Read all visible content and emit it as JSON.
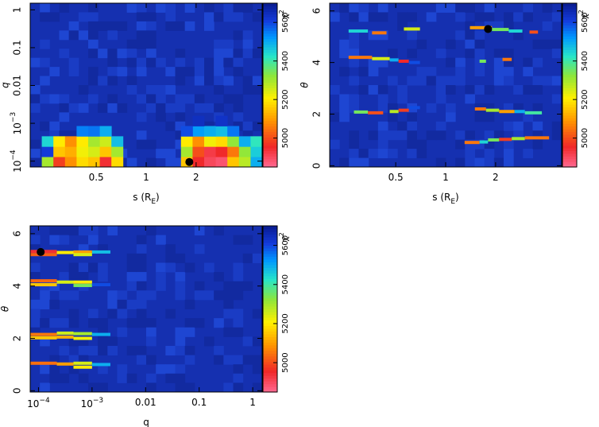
{
  "chart_data": [
    {
      "type": "heatmap",
      "panel": "s-q",
      "xlabel": "s (R",
      "xlabel_sub": "E",
      "xlabel_close": ")",
      "ylabel": "q",
      "x_scale": "log",
      "y_scale": "log",
      "xlim": [
        0.2,
        5.0
      ],
      "ylim": [
        7e-05,
        1.5
      ],
      "x_ticks": [
        {
          "v": 0.5,
          "label": "0.5"
        },
        {
          "v": 1,
          "label": "1"
        },
        {
          "v": 2,
          "label": "2"
        }
      ],
      "y_ticks": [
        {
          "v": 0.0001,
          "base": "10",
          "exp": "−4"
        },
        {
          "v": 0.001,
          "base": "10",
          "exp": "−3"
        },
        {
          "v": 0.01,
          "label": "0.01"
        },
        {
          "v": 0.1,
          "label": "0.1"
        },
        {
          "v": 1,
          "label": "1"
        }
      ],
      "colorbar_label": "χ",
      "colorbar_exp": "2",
      "colorbar_ticks": [
        5000,
        5200,
        5400,
        5600
      ],
      "zlim": [
        4850,
        5700
      ],
      "best_fit": {
        "x": 1.82,
        "y": 9.5e-05
      },
      "grid": {
        "x_bins": 20,
        "y_bins": 16
      },
      "hot_cells": [
        {
          "xi": 1,
          "yi": 1,
          "z": 5300
        },
        {
          "xi": 2,
          "yi": 1,
          "z": 4980
        },
        {
          "xi": 3,
          "yi": 1,
          "z": 5080
        },
        {
          "xi": 4,
          "yi": 1,
          "z": 5180
        },
        {
          "xi": 5,
          "yi": 1,
          "z": 5150
        },
        {
          "xi": 6,
          "yi": 1,
          "z": 4940
        },
        {
          "xi": 7,
          "yi": 1,
          "z": 5180
        },
        {
          "xi": 1,
          "yi": 2,
          "z": 5620
        },
        {
          "xi": 2,
          "yi": 2,
          "z": 5150
        },
        {
          "xi": 3,
          "yi": 2,
          "z": 5120
        },
        {
          "xi": 4,
          "yi": 2,
          "z": 5220
        },
        {
          "xi": 5,
          "yi": 2,
          "z": 5250
        },
        {
          "xi": 6,
          "yi": 2,
          "z": 5150
        },
        {
          "xi": 7,
          "yi": 2,
          "z": 5300
        },
        {
          "xi": 1,
          "yi": 3,
          "z": 5450
        },
        {
          "xi": 2,
          "yi": 3,
          "z": 5200
        },
        {
          "xi": 3,
          "yi": 3,
          "z": 5080
        },
        {
          "xi": 4,
          "yi": 3,
          "z": 5200
        },
        {
          "xi": 5,
          "yi": 3,
          "z": 5300
        },
        {
          "xi": 6,
          "yi": 3,
          "z": 5260
        },
        {
          "xi": 7,
          "yi": 3,
          "z": 5480
        },
        {
          "xi": 4,
          "yi": 4,
          "z": 5550
        },
        {
          "xi": 5,
          "yi": 4,
          "z": 5560
        },
        {
          "xi": 6,
          "yi": 4,
          "z": 5500
        },
        {
          "xi": 13,
          "yi": 1,
          "z": 5150
        },
        {
          "xi": 14,
          "yi": 1,
          "z": 4950
        },
        {
          "xi": 15,
          "yi": 1,
          "z": 4900
        },
        {
          "xi": 16,
          "yi": 1,
          "z": 4880
        },
        {
          "xi": 17,
          "yi": 1,
          "z": 5150
        },
        {
          "xi": 18,
          "yi": 1,
          "z": 5280
        },
        {
          "xi": 19,
          "yi": 1,
          "z": 5500
        },
        {
          "xi": 13,
          "yi": 2,
          "z": 5300
        },
        {
          "xi": 14,
          "yi": 2,
          "z": 5000
        },
        {
          "xi": 15,
          "yi": 2,
          "z": 4920
        },
        {
          "xi": 16,
          "yi": 2,
          "z": 4950
        },
        {
          "xi": 17,
          "yi": 2,
          "z": 5050
        },
        {
          "xi": 18,
          "yi": 2,
          "z": 5320
        },
        {
          "xi": 19,
          "yi": 2,
          "z": 5460
        },
        {
          "xi": 13,
          "yi": 3,
          "z": 5200
        },
        {
          "xi": 14,
          "yi": 3,
          "z": 5080
        },
        {
          "xi": 15,
          "yi": 3,
          "z": 5220
        },
        {
          "xi": 16,
          "yi": 3,
          "z": 5180
        },
        {
          "xi": 17,
          "yi": 3,
          "z": 5320
        },
        {
          "xi": 18,
          "yi": 3,
          "z": 5500
        },
        {
          "xi": 19,
          "yi": 3,
          "z": 5420
        },
        {
          "xi": 14,
          "yi": 4,
          "z": 5520
        },
        {
          "xi": 15,
          "yi": 4,
          "z": 5500
        },
        {
          "xi": 16,
          "yi": 4,
          "z": 5480
        },
        {
          "xi": 17,
          "yi": 4,
          "z": 5560
        },
        {
          "xi": 13,
          "yi": 4,
          "z": 5600
        },
        {
          "xi": 16,
          "yi": 5,
          "z": 5640
        },
        {
          "xi": 14,
          "yi": 5,
          "z": 5650
        }
      ]
    },
    {
      "type": "heatmap",
      "panel": "s-theta",
      "xlabel": "s (R",
      "xlabel_sub": "E",
      "xlabel_close": ")",
      "ylabel": "θ",
      "x_scale": "log",
      "y_scale": "linear",
      "xlim": [
        0.2,
        5.0
      ],
      "ylim": [
        -0.05,
        6.3
      ],
      "x_ticks": [
        {
          "v": 0.5,
          "label": "0.5"
        },
        {
          "v": 1,
          "label": "1"
        },
        {
          "v": 2,
          "label": "2"
        }
      ],
      "y_ticks": [
        {
          "v": 0,
          "label": "0"
        },
        {
          "v": 2,
          "label": "2"
        },
        {
          "v": 4,
          "label": "4"
        },
        {
          "v": 6,
          "label": "6"
        }
      ],
      "colorbar_label": "χ",
      "colorbar_exp": "2",
      "colorbar_ticks": [
        5000,
        5200,
        5400,
        5600
      ],
      "zlim": [
        4850,
        5700
      ],
      "best_fit": {
        "x": 1.8,
        "y": 5.3
      },
      "streaks": [
        {
          "x0": 0.26,
          "x1": 0.34,
          "y": 5.22,
          "z": 5450
        },
        {
          "x0": 0.36,
          "x1": 0.44,
          "y": 5.15,
          "z": 5050
        },
        {
          "x0": 0.56,
          "x1": 0.7,
          "y": 5.3,
          "z": 5250
        },
        {
          "x0": 1.4,
          "x1": 1.9,
          "y": 5.35,
          "z": 5100
        },
        {
          "x0": 1.9,
          "x1": 2.4,
          "y": 5.28,
          "z": 5350
        },
        {
          "x0": 2.4,
          "x1": 2.9,
          "y": 5.22,
          "z": 5450
        },
        {
          "x0": 3.2,
          "x1": 3.6,
          "y": 5.18,
          "z": 5000
        },
        {
          "x0": 0.26,
          "x1": 0.36,
          "y": 4.2,
          "z": 5050
        },
        {
          "x0": 0.36,
          "x1": 0.46,
          "y": 4.15,
          "z": 5250
        },
        {
          "x0": 0.46,
          "x1": 0.52,
          "y": 4.1,
          "z": 5500
        },
        {
          "x0": 0.52,
          "x1": 0.6,
          "y": 4.05,
          "z": 4950
        },
        {
          "x0": 0.6,
          "x1": 0.7,
          "y": 4.0,
          "z": 5600
        },
        {
          "x0": 1.6,
          "x1": 1.75,
          "y": 4.05,
          "z": 5350
        },
        {
          "x0": 2.2,
          "x1": 2.5,
          "y": 4.12,
          "z": 5050
        },
        {
          "x0": 0.28,
          "x1": 0.34,
          "y": 2.08,
          "z": 5350
        },
        {
          "x0": 0.34,
          "x1": 0.42,
          "y": 2.05,
          "z": 5000
        },
        {
          "x0": 0.46,
          "x1": 0.52,
          "y": 2.1,
          "z": 5280
        },
        {
          "x0": 0.52,
          "x1": 0.6,
          "y": 2.15,
          "z": 4980
        },
        {
          "x0": 0.6,
          "x1": 0.7,
          "y": 2.25,
          "z": 5600
        },
        {
          "x0": 1.5,
          "x1": 1.75,
          "y": 2.2,
          "z": 5050
        },
        {
          "x0": 1.75,
          "x1": 2.1,
          "y": 2.15,
          "z": 5300
        },
        {
          "x0": 2.1,
          "x1": 2.6,
          "y": 2.1,
          "z": 5100
        },
        {
          "x0": 2.6,
          "x1": 3.0,
          "y": 2.1,
          "z": 5500
        },
        {
          "x0": 3.0,
          "x1": 3.8,
          "y": 2.05,
          "z": 5400
        },
        {
          "x0": 1.3,
          "x1": 1.6,
          "y": 0.9,
          "z": 5050
        },
        {
          "x0": 1.6,
          "x1": 1.8,
          "y": 0.92,
          "z": 5450
        },
        {
          "x0": 1.8,
          "x1": 2.1,
          "y": 1.0,
          "z": 5350
        },
        {
          "x0": 2.1,
          "x1": 2.5,
          "y": 1.02,
          "z": 4980
        },
        {
          "x0": 2.5,
          "x1": 3.0,
          "y": 1.05,
          "z": 5300
        },
        {
          "x0": 3.0,
          "x1": 4.2,
          "y": 1.08,
          "z": 5050
        }
      ]
    },
    {
      "type": "heatmap",
      "panel": "q-theta",
      "xlabel": "q",
      "ylabel": "θ",
      "x_scale": "log",
      "y_scale": "linear",
      "xlim": [
        7e-05,
        1.5
      ],
      "ylim": [
        -0.05,
        6.3
      ],
      "x_ticks": [
        {
          "v": 0.0001,
          "base": "10",
          "exp": "−4"
        },
        {
          "v": 0.001,
          "base": "10",
          "exp": "−3"
        },
        {
          "v": 0.01,
          "label": "0.01"
        },
        {
          "v": 0.1,
          "label": "0.1"
        },
        {
          "v": 1,
          "label": "1"
        }
      ],
      "y_ticks": [
        {
          "v": 0,
          "label": "0"
        },
        {
          "v": 2,
          "label": "2"
        },
        {
          "v": 4,
          "label": "4"
        },
        {
          "v": 6,
          "label": "6"
        }
      ],
      "colorbar_label": "χ",
      "colorbar_exp": "2",
      "colorbar_ticks": [
        5000,
        5200,
        5400,
        5600
      ],
      "zlim": [
        4850,
        5700
      ],
      "best_fit": {
        "x": 0.00011,
        "y": 5.3
      },
      "streaks": [
        {
          "x0": 7e-05,
          "x1": 0.00022,
          "y": 5.32,
          "z": 4940
        },
        {
          "x0": 7e-05,
          "x1": 0.00022,
          "y": 5.2,
          "z": 5020
        },
        {
          "x0": 0.00022,
          "x1": 0.00045,
          "y": 5.28,
          "z": 5200
        },
        {
          "x0": 0.00045,
          "x1": 0.001,
          "y": 5.3,
          "z": 5100
        },
        {
          "x0": 0.00045,
          "x1": 0.001,
          "y": 5.2,
          "z": 5250
        },
        {
          "x0": 0.001,
          "x1": 0.0022,
          "y": 5.3,
          "z": 5480
        },
        {
          "x0": 7e-05,
          "x1": 0.00022,
          "y": 4.2,
          "z": 5030
        },
        {
          "x0": 7e-05,
          "x1": 0.00022,
          "y": 4.05,
          "z": 5150
        },
        {
          "x0": 0.00022,
          "x1": 0.00045,
          "y": 4.15,
          "z": 5250
        },
        {
          "x0": 0.00045,
          "x1": 0.001,
          "y": 4.15,
          "z": 5200
        },
        {
          "x0": 0.00045,
          "x1": 0.001,
          "y": 4.02,
          "z": 5350
        },
        {
          "x0": 0.001,
          "x1": 0.0022,
          "y": 4.05,
          "z": 5600
        },
        {
          "x0": 7e-05,
          "x1": 0.00022,
          "y": 2.15,
          "z": 5050
        },
        {
          "x0": 7e-05,
          "x1": 0.00022,
          "y": 2.02,
          "z": 5150
        },
        {
          "x0": 0.00022,
          "x1": 0.00045,
          "y": 2.2,
          "z": 5260
        },
        {
          "x0": 0.00022,
          "x1": 0.00045,
          "y": 2.05,
          "z": 5120
        },
        {
          "x0": 0.00045,
          "x1": 0.001,
          "y": 2.18,
          "z": 5300
        },
        {
          "x0": 0.00045,
          "x1": 0.001,
          "y": 2.0,
          "z": 5220
        },
        {
          "x0": 0.001,
          "x1": 0.0022,
          "y": 2.15,
          "z": 5500
        },
        {
          "x0": 7e-05,
          "x1": 0.00022,
          "y": 1.05,
          "z": 5040
        },
        {
          "x0": 0.00022,
          "x1": 0.00045,
          "y": 1.02,
          "z": 5100
        },
        {
          "x0": 0.00045,
          "x1": 0.001,
          "y": 1.05,
          "z": 5250
        },
        {
          "x0": 0.00045,
          "x1": 0.001,
          "y": 0.9,
          "z": 5200
        },
        {
          "x0": 0.001,
          "x1": 0.0022,
          "y": 1.0,
          "z": 5500
        }
      ]
    }
  ]
}
